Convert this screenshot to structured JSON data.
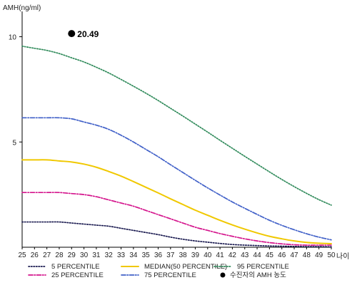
{
  "chart_data": {
    "type": "line",
    "ylabel": "AMH(ng/ml)",
    "xlabel": "나이",
    "xlim": [
      25,
      50
    ],
    "ylim": [
      0,
      11
    ],
    "yticks": [
      5,
      10
    ],
    "x": [
      25,
      26,
      27,
      28,
      29,
      30,
      31,
      32,
      33,
      34,
      35,
      36,
      37,
      38,
      39,
      40,
      41,
      42,
      43,
      44,
      45,
      46,
      47,
      48,
      49,
      50
    ],
    "series": [
      {
        "name": "5 PERCENTILE",
        "color": "#1a1a50",
        "dash": "1.5 2",
        "values": [
          1.2,
          1.2,
          1.2,
          1.2,
          1.15,
          1.1,
          1.05,
          1.0,
          0.9,
          0.8,
          0.7,
          0.6,
          0.48,
          0.38,
          0.3,
          0.24,
          0.18,
          0.13,
          0.1,
          0.08,
          0.06,
          0.05,
          0.04,
          0.03,
          0.03,
          0.02
        ]
      },
      {
        "name": "25 PERCENTILE",
        "color": "#d4148c",
        "dash": "6 2 1.5 2",
        "values": [
          2.6,
          2.6,
          2.6,
          2.6,
          2.55,
          2.5,
          2.4,
          2.25,
          2.1,
          1.95,
          1.75,
          1.55,
          1.35,
          1.15,
          0.95,
          0.8,
          0.65,
          0.52,
          0.4,
          0.3,
          0.22,
          0.16,
          0.12,
          0.1,
          0.1,
          0.1
        ]
      },
      {
        "name": "MEDIAN(50 PERCENTILE)",
        "color": "#f0c800",
        "dash": "",
        "values": [
          4.15,
          4.15,
          4.15,
          4.1,
          4.05,
          3.95,
          3.8,
          3.6,
          3.38,
          3.12,
          2.85,
          2.58,
          2.3,
          2.03,
          1.76,
          1.52,
          1.28,
          1.06,
          0.86,
          0.68,
          0.52,
          0.4,
          0.3,
          0.23,
          0.19,
          0.17
        ]
      },
      {
        "name": "75 PERCENTILE",
        "color": "#4060c8",
        "dash": "6 2 1.5 2",
        "values": [
          6.15,
          6.15,
          6.15,
          6.15,
          6.1,
          5.95,
          5.8,
          5.6,
          5.32,
          5.0,
          4.65,
          4.3,
          3.92,
          3.55,
          3.18,
          2.82,
          2.48,
          2.15,
          1.85,
          1.56,
          1.28,
          1.04,
          0.83,
          0.64,
          0.48,
          0.35
        ]
      },
      {
        "name": "95 PERCENTILE",
        "color": "#2f8a5a",
        "dash": "1.5 2",
        "values": [
          9.55,
          9.45,
          9.35,
          9.2,
          9.0,
          8.8,
          8.55,
          8.28,
          7.97,
          7.65,
          7.32,
          6.97,
          6.6,
          6.23,
          5.85,
          5.47,
          5.08,
          4.7,
          4.32,
          3.95,
          3.58,
          3.22,
          2.88,
          2.56,
          2.26,
          2.0
        ]
      }
    ],
    "marker": {
      "name": "수진자의 AMH 농도",
      "x": 29,
      "y": 10.15,
      "label": "20.49",
      "color": "#000000"
    },
    "legend": {
      "position": "bottom",
      "order": [
        "5 PERCENTILE",
        "25 PERCENTILE",
        "MEDIAN(50 PERCENTILE)",
        "75 PERCENTILE",
        "95 PERCENTILE",
        "수진자의 AMH 농도"
      ]
    }
  }
}
